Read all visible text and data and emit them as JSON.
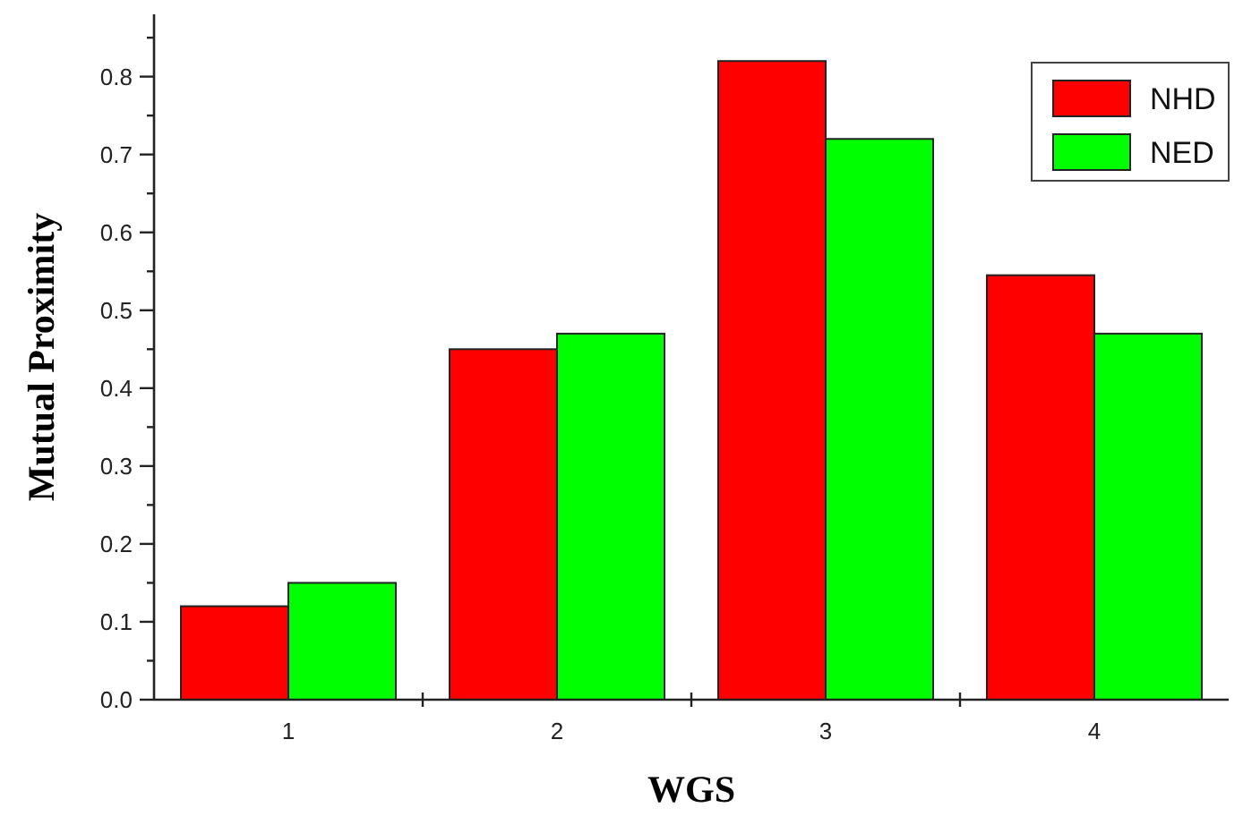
{
  "chart_data": {
    "type": "bar",
    "xlabel": "WGS",
    "ylabel": "Mutual Proximity",
    "categories": [
      "1",
      "2",
      "3",
      "4"
    ],
    "series": [
      {
        "name": "NHD",
        "color": "#ff0000",
        "values": [
          0.12,
          0.45,
          0.82,
          0.545
        ]
      },
      {
        "name": "NED",
        "color": "#00ff00",
        "values": [
          0.15,
          0.47,
          0.72,
          0.47
        ]
      }
    ],
    "ylim": [
      0,
      0.88
    ],
    "yticks": [
      {
        "value": 0,
        "label": "0.0"
      },
      {
        "value": 0.05,
        "label": null
      },
      {
        "value": 0.1,
        "label": "0.1"
      },
      {
        "value": 0.15,
        "label": null
      },
      {
        "value": 0.2,
        "label": "0.2"
      },
      {
        "value": 0.25,
        "label": null
      },
      {
        "value": 0.3,
        "label": "0.3"
      },
      {
        "value": 0.35,
        "label": null
      },
      {
        "value": 0.4,
        "label": "0.4"
      },
      {
        "value": 0.45,
        "label": null
      },
      {
        "value": 0.5,
        "label": "0.5"
      },
      {
        "value": 0.55,
        "label": null
      },
      {
        "value": 0.6,
        "label": "0.6"
      },
      {
        "value": 0.65,
        "label": null
      },
      {
        "value": 0.7,
        "label": "0.7"
      },
      {
        "value": 0.75,
        "label": null
      },
      {
        "value": 0.8,
        "label": "0.8"
      },
      {
        "value": 0.85,
        "label": null
      }
    ],
    "legend": "top right"
  }
}
